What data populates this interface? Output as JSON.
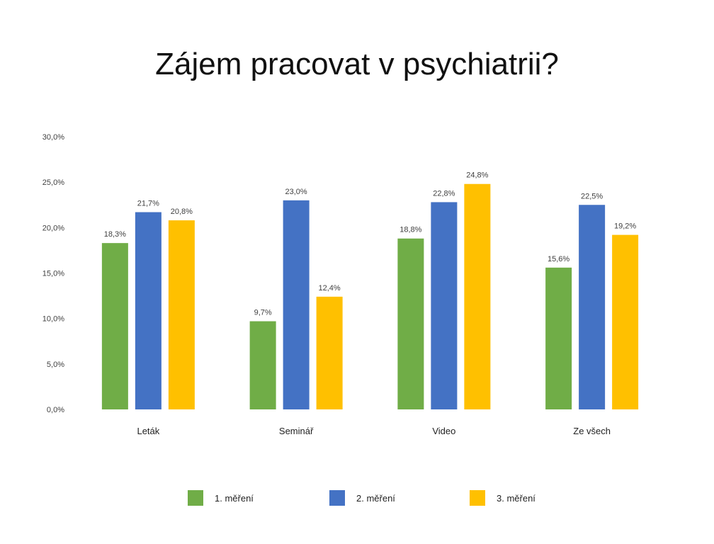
{
  "chart_data": {
    "type": "bar",
    "title": "Zájem pracovat v psychiatrii?",
    "categories": [
      "Leták",
      "Seminář",
      "Video",
      "Ze všech"
    ],
    "series": [
      {
        "name": "1. měření",
        "color": "#70AD47",
        "values": [
          18.3,
          9.7,
          18.8,
          15.6
        ],
        "labels": [
          "18,3%",
          "9,7%",
          "18,8%",
          "15,6%"
        ]
      },
      {
        "name": "2. měření",
        "color": "#4472C4",
        "values": [
          21.7,
          23.0,
          22.8,
          22.5
        ],
        "labels": [
          "21,7%",
          "23,0%",
          "22,8%",
          "22,5%"
        ]
      },
      {
        "name": "3. měření",
        "color": "#FFC000",
        "values": [
          20.8,
          12.4,
          24.8,
          19.2
        ],
        "labels": [
          "20,8%",
          "12,4%",
          "24,8%",
          "19,2%"
        ]
      }
    ],
    "ylim": [
      0,
      30
    ],
    "y_ticks": [
      "0,0%",
      "5,0%",
      "10,0%",
      "15,0%",
      "20,0%",
      "25,0%",
      "30,0%"
    ],
    "xlabel": "",
    "ylabel": "",
    "grid": false,
    "legend_position": "bottom"
  }
}
